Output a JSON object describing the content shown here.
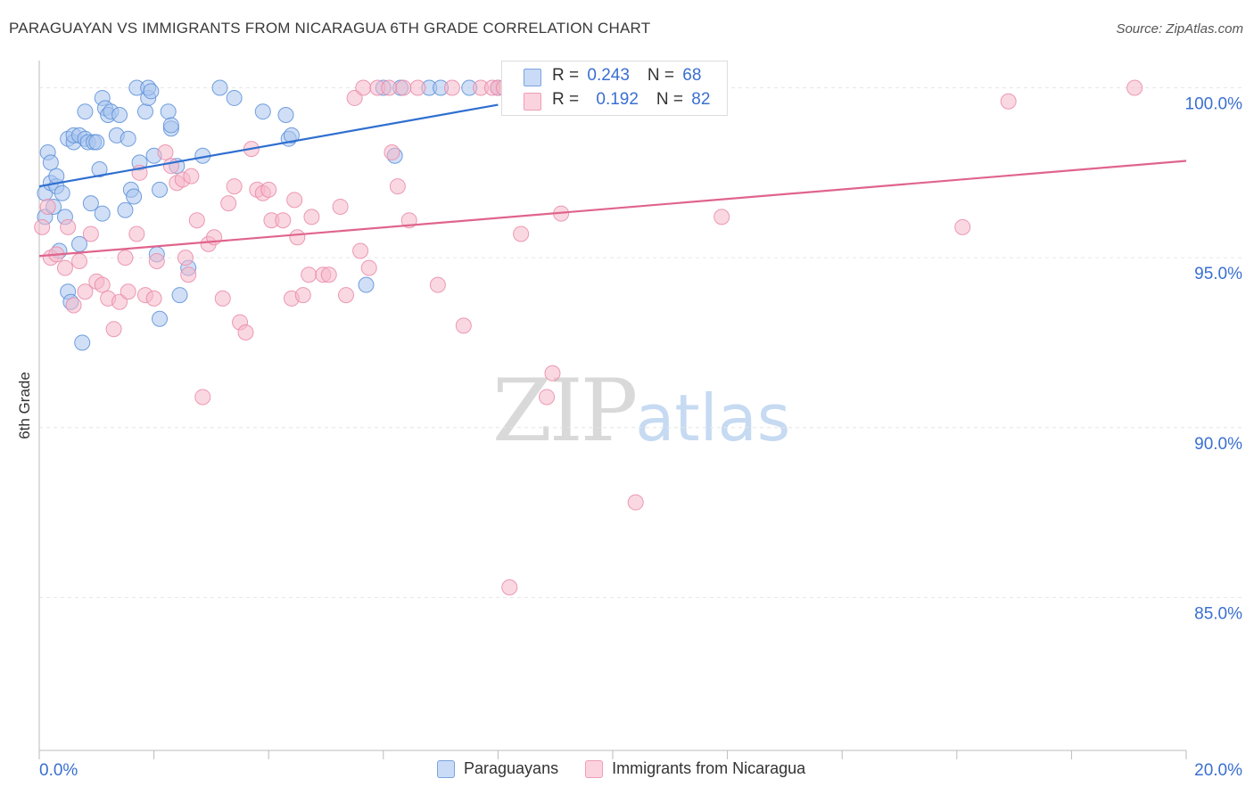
{
  "title": "PARAGUAYAN VS IMMIGRANTS FROM NICARAGUA 6TH GRADE CORRELATION CHART",
  "source": "Source: ZipAtlas.com",
  "watermark": {
    "zip": "ZIP",
    "atlas": "atlas"
  },
  "stats": [
    {
      "r_label": "R = ",
      "r_value": "0.243",
      "n_label": "N = ",
      "n_value": "68",
      "color": "#a9c4ef"
    },
    {
      "r_label": "R = ",
      "r_value": "0.192",
      "n_label": "N = ",
      "n_value": "82",
      "color": "#f6b8cb"
    }
  ],
  "legend": [
    {
      "label": "Paraguayans",
      "color": "#a9c4ef"
    },
    {
      "label": "Immigrants from Nicaragua",
      "color": "#f6b8cb"
    }
  ],
  "chart_data": {
    "type": "scatter",
    "title": "PARAGUAYAN VS IMMIGRANTS FROM NICARAGUA 6TH GRADE CORRELATION CHART",
    "xlabel": "",
    "ylabel": "6th Grade",
    "xlim": [
      0,
      20
    ],
    "ylim": [
      80.5,
      100.8
    ],
    "x_tick_labels": [
      "0.0%",
      "20.0%"
    ],
    "y_ticks": [
      85,
      90,
      95,
      100
    ],
    "y_tick_labels": [
      "85.0%",
      "90.0%",
      "95.0%",
      "100.0%"
    ],
    "grid": true,
    "series": [
      {
        "name": "Paraguayans",
        "color": "#5a8fd8",
        "fill": "#a9c4ef",
        "trend": {
          "x0": 0,
          "y0": 97.1,
          "x1": 8.0,
          "y1": 99.5
        },
        "points": [
          [
            0.1,
            96.9
          ],
          [
            0.1,
            96.2
          ],
          [
            0.15,
            98.1
          ],
          [
            0.2,
            97.8
          ],
          [
            0.2,
            97.2
          ],
          [
            0.25,
            96.5
          ],
          [
            0.3,
            97.1
          ],
          [
            0.3,
            97.4
          ],
          [
            0.35,
            95.2
          ],
          [
            0.4,
            96.9
          ],
          [
            0.45,
            96.2
          ],
          [
            0.5,
            98.5
          ],
          [
            0.5,
            94.0
          ],
          [
            0.55,
            93.7
          ],
          [
            0.6,
            98.4
          ],
          [
            0.6,
            98.6
          ],
          [
            0.7,
            98.6
          ],
          [
            0.7,
            95.4
          ],
          [
            0.75,
            92.5
          ],
          [
            0.8,
            99.3
          ],
          [
            0.8,
            98.5
          ],
          [
            0.85,
            98.4
          ],
          [
            0.9,
            96.6
          ],
          [
            0.95,
            98.4
          ],
          [
            1.0,
            98.4
          ],
          [
            1.05,
            97.6
          ],
          [
            1.1,
            96.3
          ],
          [
            1.1,
            99.7
          ],
          [
            1.15,
            99.4
          ],
          [
            1.2,
            99.2
          ],
          [
            1.25,
            99.3
          ],
          [
            1.35,
            98.6
          ],
          [
            1.4,
            99.2
          ],
          [
            1.5,
            96.4
          ],
          [
            1.55,
            98.5
          ],
          [
            1.6,
            97.0
          ],
          [
            1.65,
            96.8
          ],
          [
            1.7,
            100.0
          ],
          [
            1.75,
            97.8
          ],
          [
            1.85,
            99.3
          ],
          [
            1.9,
            99.7
          ],
          [
            1.9,
            100.0
          ],
          [
            1.95,
            99.9
          ],
          [
            2.0,
            98.0
          ],
          [
            2.05,
            95.1
          ],
          [
            2.1,
            97.0
          ],
          [
            2.1,
            93.2
          ],
          [
            2.25,
            99.3
          ],
          [
            2.3,
            98.8
          ],
          [
            2.3,
            98.9
          ],
          [
            2.4,
            97.7
          ],
          [
            2.45,
            93.9
          ],
          [
            2.6,
            94.7
          ],
          [
            2.85,
            98.0
          ],
          [
            3.15,
            100.0
          ],
          [
            3.4,
            99.7
          ],
          [
            3.9,
            99.3
          ],
          [
            4.3,
            99.2
          ],
          [
            4.35,
            98.5
          ],
          [
            4.4,
            98.6
          ],
          [
            5.7,
            94.2
          ],
          [
            6.0,
            100.0
          ],
          [
            6.2,
            98.0
          ],
          [
            6.3,
            100.0
          ],
          [
            6.8,
            100.0
          ],
          [
            7.0,
            100.0
          ],
          [
            7.5,
            100.0
          ],
          [
            8.0,
            100.0
          ]
        ]
      },
      {
        "name": "Immigrants from Nicaragua",
        "color": "#e98aa8",
        "fill": "#f6b8cb",
        "trend": {
          "x0": 0,
          "y0": 95.05,
          "x1": 20.0,
          "y1": 97.85
        },
        "points": [
          [
            0.05,
            95.9
          ],
          [
            0.15,
            96.5
          ],
          [
            0.2,
            95.0
          ],
          [
            0.3,
            95.1
          ],
          [
            0.45,
            94.7
          ],
          [
            0.5,
            95.9
          ],
          [
            0.6,
            93.6
          ],
          [
            0.7,
            94.9
          ],
          [
            0.8,
            94.0
          ],
          [
            0.9,
            95.7
          ],
          [
            1.0,
            94.3
          ],
          [
            1.1,
            94.2
          ],
          [
            1.2,
            93.8
          ],
          [
            1.3,
            92.9
          ],
          [
            1.4,
            93.7
          ],
          [
            1.5,
            95.0
          ],
          [
            1.55,
            94.0
          ],
          [
            1.7,
            95.7
          ],
          [
            1.75,
            97.5
          ],
          [
            1.85,
            93.9
          ],
          [
            2.0,
            93.8
          ],
          [
            2.05,
            94.9
          ],
          [
            2.2,
            98.1
          ],
          [
            2.3,
            97.7
          ],
          [
            2.4,
            97.2
          ],
          [
            2.5,
            97.3
          ],
          [
            2.55,
            95.0
          ],
          [
            2.6,
            94.5
          ],
          [
            2.65,
            97.4
          ],
          [
            2.75,
            96.1
          ],
          [
            2.85,
            90.9
          ],
          [
            2.95,
            95.4
          ],
          [
            3.05,
            95.6
          ],
          [
            3.2,
            93.8
          ],
          [
            3.3,
            96.6
          ],
          [
            3.4,
            97.1
          ],
          [
            3.5,
            93.1
          ],
          [
            3.6,
            92.8
          ],
          [
            3.7,
            98.2
          ],
          [
            3.8,
            97.0
          ],
          [
            3.9,
            96.9
          ],
          [
            4.0,
            97.0
          ],
          [
            4.05,
            96.1
          ],
          [
            4.25,
            96.1
          ],
          [
            4.4,
            93.8
          ],
          [
            4.45,
            96.7
          ],
          [
            4.5,
            95.6
          ],
          [
            4.6,
            93.9
          ],
          [
            4.7,
            94.5
          ],
          [
            4.75,
            96.2
          ],
          [
            4.95,
            94.5
          ],
          [
            5.05,
            94.5
          ],
          [
            5.25,
            96.5
          ],
          [
            5.35,
            93.9
          ],
          [
            5.5,
            99.7
          ],
          [
            5.6,
            95.2
          ],
          [
            5.65,
            100.0
          ],
          [
            5.75,
            94.7
          ],
          [
            5.9,
            100.0
          ],
          [
            6.1,
            100.0
          ],
          [
            6.15,
            98.1
          ],
          [
            6.25,
            97.1
          ],
          [
            6.35,
            100.0
          ],
          [
            6.45,
            96.1
          ],
          [
            6.6,
            100.0
          ],
          [
            6.95,
            94.2
          ],
          [
            7.2,
            100.0
          ],
          [
            7.4,
            93.0
          ],
          [
            7.7,
            100.0
          ],
          [
            7.9,
            100.0
          ],
          [
            8.0,
            100.0
          ],
          [
            8.1,
            100.0
          ],
          [
            8.2,
            85.3
          ],
          [
            8.4,
            95.7
          ],
          [
            8.85,
            90.9
          ],
          [
            8.95,
            91.6
          ],
          [
            9.1,
            96.3
          ],
          [
            10.4,
            87.8
          ],
          [
            11.9,
            96.2
          ],
          [
            16.1,
            95.9
          ],
          [
            16.9,
            99.6
          ],
          [
            19.1,
            100.0
          ]
        ]
      }
    ]
  }
}
